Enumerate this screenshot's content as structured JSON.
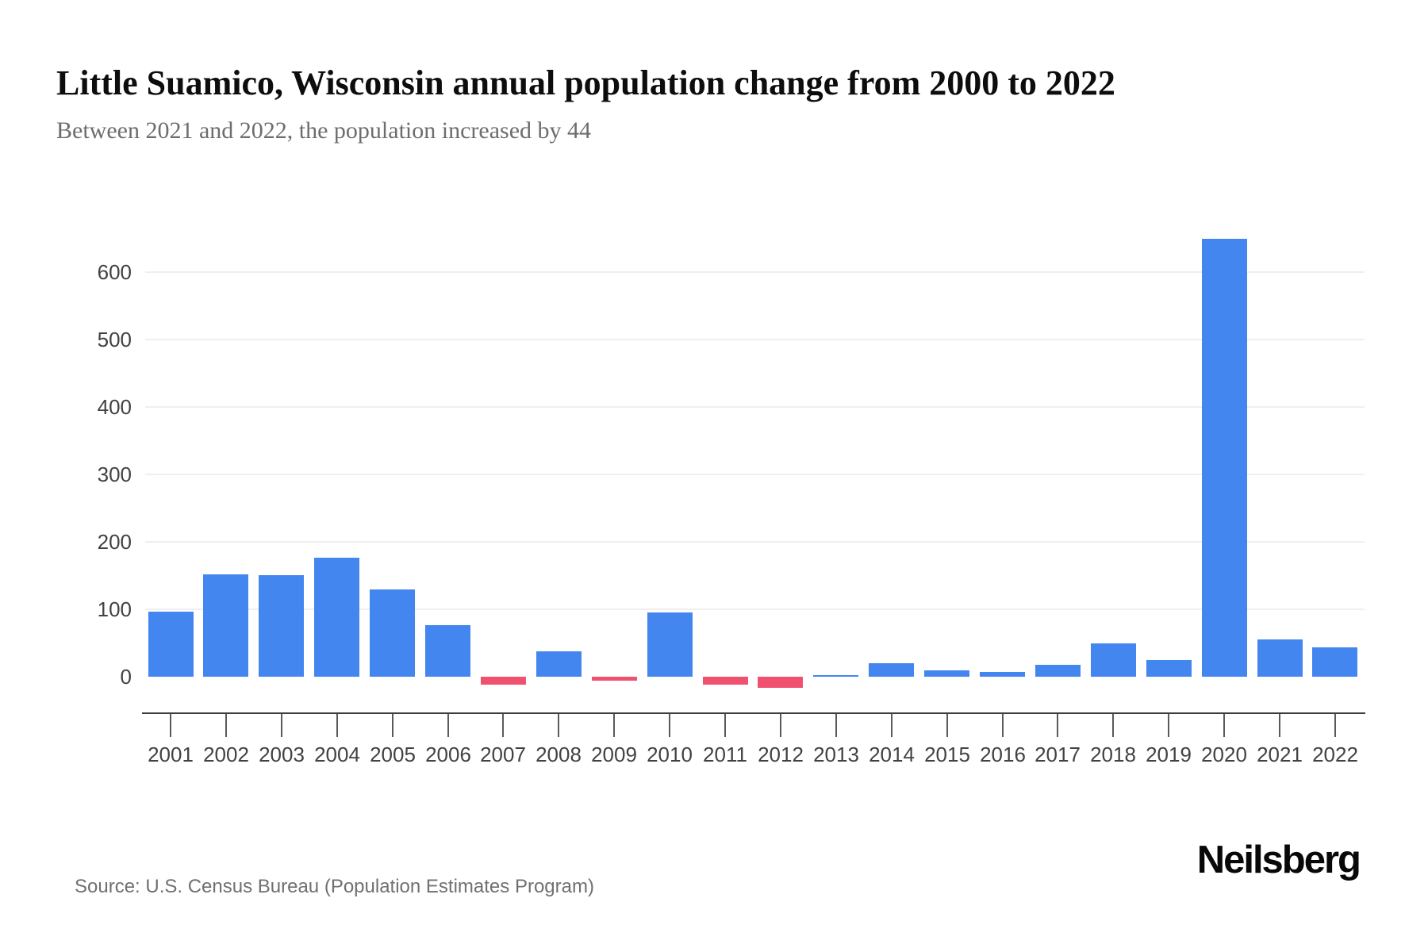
{
  "header": {
    "title": "Little Suamico, Wisconsin annual population change from 2000 to 2022",
    "subtitle": "Between 2021 and 2022, the population increased by 44"
  },
  "chart_data": {
    "type": "bar",
    "title": "Little Suamico, Wisconsin annual population change from 2000 to 2022",
    "categories": [
      "2001",
      "2002",
      "2003",
      "2004",
      "2005",
      "2006",
      "2007",
      "2008",
      "2009",
      "2010",
      "2011",
      "2012",
      "2013",
      "2014",
      "2015",
      "2016",
      "2017",
      "2018",
      "2019",
      "2020",
      "2021",
      "2022"
    ],
    "values": [
      97,
      152,
      151,
      176,
      129,
      76,
      -12,
      38,
      -6,
      95,
      -12,
      -17,
      1,
      20,
      10,
      7,
      18,
      50,
      25,
      649,
      55,
      44
    ],
    "xlabel": "",
    "ylabel": "",
    "yticks": [
      0,
      100,
      200,
      300,
      400,
      500,
      600
    ],
    "ylim": [
      -40,
      680
    ],
    "grid": true,
    "legend": false,
    "positive_color": "#4486f0",
    "negative_color": "#f0516f",
    "gridline_color": "#efefef",
    "axis_color": "#3d3d3d",
    "label_color": "#424242"
  },
  "footer": {
    "source": "Source: U.S. Census Bureau (Population Estimates Program)",
    "brand": "Neilsberg"
  }
}
